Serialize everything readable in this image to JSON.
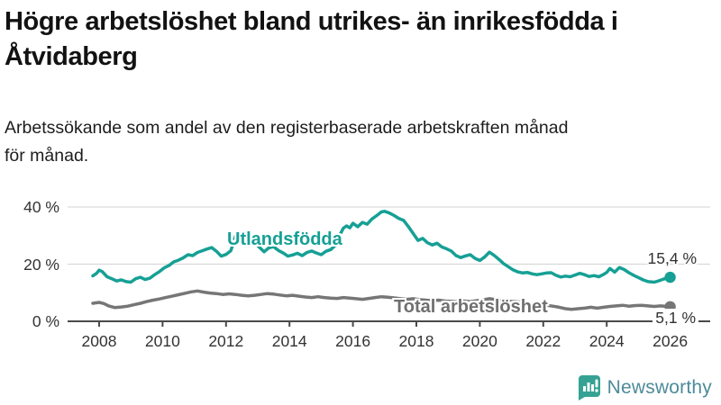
{
  "header": {
    "title_lines": [
      "Högre arbetslöshet bland utrikes- än inrikesfödda i",
      "Åtvidaberg"
    ],
    "subtitle_lines": [
      "Arbetssökande som andel av den registerbaserade arbetskraften månad",
      "för månad."
    ]
  },
  "chart_data": {
    "type": "line",
    "title": "Högre arbetslöshet bland utrikes- än inrikesfödda i Åtvidaberg",
    "subtitle": "Arbetssökande som andel av den registerbaserade arbetskraften månad för månad.",
    "x_range": [
      2008,
      2026
    ],
    "y_range": [
      0,
      40
    ],
    "grid": "horizontal-only",
    "legend_position": "inline-labels",
    "x_ticks": [
      {
        "label": "2008",
        "year": 2008
      },
      {
        "label": "2010",
        "year": 2010
      },
      {
        "label": "2012",
        "year": 2012
      },
      {
        "label": "2014",
        "year": 2014
      },
      {
        "label": "2016",
        "year": 2016
      },
      {
        "label": "2018",
        "year": 2018
      },
      {
        "label": "2020",
        "year": 2020
      },
      {
        "label": "2022",
        "year": 2022
      },
      {
        "label": "2024",
        "year": 2024
      },
      {
        "label": "2026",
        "year": 2026
      }
    ],
    "y_ticks": [
      {
        "label": "0 %",
        "value": 0
      },
      {
        "label": "20 %",
        "value": 20
      },
      {
        "label": "40 %",
        "value": 40
      }
    ],
    "colors": {
      "foreign_born": "#16a095",
      "total": "#767676",
      "axis": "#4a4a4a",
      "gridline": "#d9d9d9",
      "text": "#333333"
    },
    "series": [
      {
        "name": "Utlandsfödda",
        "color": "#16a095",
        "end_label": "15,4 %",
        "end_value": 15.4,
        "points": [
          [
            2007.8,
            15.9
          ],
          [
            2007.92,
            16.8
          ],
          [
            2008.0,
            17.9
          ],
          [
            2008.1,
            17.4
          ],
          [
            2008.25,
            15.6
          ],
          [
            2008.4,
            14.9
          ],
          [
            2008.55,
            14.1
          ],
          [
            2008.7,
            14.5
          ],
          [
            2008.85,
            13.9
          ],
          [
            2009.0,
            13.7
          ],
          [
            2009.15,
            14.9
          ],
          [
            2009.3,
            15.4
          ],
          [
            2009.45,
            14.6
          ],
          [
            2009.6,
            15.1
          ],
          [
            2009.75,
            16.3
          ],
          [
            2009.9,
            17.4
          ],
          [
            2010.05,
            18.7
          ],
          [
            2010.2,
            19.5
          ],
          [
            2010.35,
            20.8
          ],
          [
            2010.5,
            21.4
          ],
          [
            2010.65,
            22.2
          ],
          [
            2010.8,
            23.3
          ],
          [
            2010.95,
            23.0
          ],
          [
            2011.1,
            24.1
          ],
          [
            2011.25,
            24.7
          ],
          [
            2011.4,
            25.3
          ],
          [
            2011.55,
            25.8
          ],
          [
            2011.7,
            24.5
          ],
          [
            2011.85,
            22.8
          ],
          [
            2012.0,
            23.4
          ],
          [
            2012.15,
            24.7
          ],
          [
            2012.3,
            29.9
          ],
          [
            2012.4,
            31.2
          ],
          [
            2012.5,
            29.7
          ],
          [
            2012.6,
            30.8
          ],
          [
            2012.75,
            29.2
          ],
          [
            2012.9,
            27.8
          ],
          [
            2013.05,
            25.9
          ],
          [
            2013.2,
            24.3
          ],
          [
            2013.35,
            25.7
          ],
          [
            2013.5,
            26.1
          ],
          [
            2013.65,
            24.8
          ],
          [
            2013.8,
            23.9
          ],
          [
            2013.95,
            22.8
          ],
          [
            2014.1,
            23.2
          ],
          [
            2014.25,
            23.8
          ],
          [
            2014.4,
            23.0
          ],
          [
            2014.55,
            24.1
          ],
          [
            2014.7,
            24.6
          ],
          [
            2014.85,
            23.9
          ],
          [
            2015.0,
            23.3
          ],
          [
            2015.15,
            24.5
          ],
          [
            2015.3,
            25.1
          ],
          [
            2015.45,
            26.6
          ],
          [
            2015.6,
            30.5
          ],
          [
            2015.7,
            32.6
          ],
          [
            2015.8,
            33.4
          ],
          [
            2015.9,
            32.7
          ],
          [
            2016.0,
            34.3
          ],
          [
            2016.15,
            33.1
          ],
          [
            2016.3,
            34.6
          ],
          [
            2016.45,
            34.0
          ],
          [
            2016.6,
            35.8
          ],
          [
            2016.75,
            37.0
          ],
          [
            2016.9,
            38.3
          ],
          [
            2017.0,
            38.5
          ],
          [
            2017.15,
            37.9
          ],
          [
            2017.3,
            37.0
          ],
          [
            2017.45,
            36.0
          ],
          [
            2017.6,
            35.3
          ],
          [
            2017.75,
            33.1
          ],
          [
            2017.9,
            30.7
          ],
          [
            2018.05,
            28.3
          ],
          [
            2018.2,
            29.0
          ],
          [
            2018.35,
            27.5
          ],
          [
            2018.5,
            26.7
          ],
          [
            2018.65,
            27.3
          ],
          [
            2018.8,
            26.0
          ],
          [
            2018.95,
            25.4
          ],
          [
            2019.1,
            24.6
          ],
          [
            2019.25,
            23.0
          ],
          [
            2019.4,
            22.3
          ],
          [
            2019.55,
            22.9
          ],
          [
            2019.7,
            23.3
          ],
          [
            2019.85,
            22.0
          ],
          [
            2020.0,
            21.3
          ],
          [
            2020.15,
            22.5
          ],
          [
            2020.3,
            24.2
          ],
          [
            2020.45,
            23.1
          ],
          [
            2020.6,
            21.7
          ],
          [
            2020.75,
            20.2
          ],
          [
            2020.9,
            19.1
          ],
          [
            2021.05,
            18.0
          ],
          [
            2021.2,
            17.3
          ],
          [
            2021.35,
            16.9
          ],
          [
            2021.5,
            17.1
          ],
          [
            2021.65,
            16.6
          ],
          [
            2021.8,
            16.3
          ],
          [
            2021.95,
            16.6
          ],
          [
            2022.1,
            16.9
          ],
          [
            2022.25,
            17.0
          ],
          [
            2022.4,
            16.1
          ],
          [
            2022.55,
            15.5
          ],
          [
            2022.7,
            15.8
          ],
          [
            2022.85,
            15.6
          ],
          [
            2023.0,
            16.2
          ],
          [
            2023.15,
            16.8
          ],
          [
            2023.3,
            16.3
          ],
          [
            2023.45,
            15.7
          ],
          [
            2023.6,
            16.0
          ],
          [
            2023.75,
            15.6
          ],
          [
            2023.9,
            16.4
          ],
          [
            2024.0,
            17.1
          ],
          [
            2024.1,
            18.5
          ],
          [
            2024.25,
            17.2
          ],
          [
            2024.4,
            18.8
          ],
          [
            2024.55,
            18.1
          ],
          [
            2024.7,
            17.0
          ],
          [
            2024.85,
            16.1
          ],
          [
            2025.0,
            15.3
          ],
          [
            2025.15,
            14.5
          ],
          [
            2025.3,
            13.9
          ],
          [
            2025.5,
            13.7
          ],
          [
            2025.65,
            14.2
          ],
          [
            2025.8,
            14.8
          ],
          [
            2026.0,
            15.4
          ]
        ]
      },
      {
        "name": "Total arbetslöshet",
        "color": "#767676",
        "end_label": "5,1 %",
        "end_value": 5.1,
        "points": [
          [
            2007.8,
            6.3
          ],
          [
            2008.0,
            6.6
          ],
          [
            2008.15,
            6.2
          ],
          [
            2008.3,
            5.4
          ],
          [
            2008.5,
            4.8
          ],
          [
            2008.7,
            5.0
          ],
          [
            2008.9,
            5.3
          ],
          [
            2009.1,
            5.8
          ],
          [
            2009.3,
            6.3
          ],
          [
            2009.5,
            6.9
          ],
          [
            2009.7,
            7.4
          ],
          [
            2009.9,
            7.8
          ],
          [
            2010.1,
            8.3
          ],
          [
            2010.3,
            8.8
          ],
          [
            2010.5,
            9.3
          ],
          [
            2010.7,
            9.8
          ],
          [
            2010.9,
            10.3
          ],
          [
            2011.1,
            10.6
          ],
          [
            2011.3,
            10.2
          ],
          [
            2011.5,
            9.9
          ],
          [
            2011.7,
            9.7
          ],
          [
            2011.9,
            9.4
          ],
          [
            2012.1,
            9.6
          ],
          [
            2012.3,
            9.4
          ],
          [
            2012.5,
            9.1
          ],
          [
            2012.7,
            8.9
          ],
          [
            2012.9,
            9.1
          ],
          [
            2013.1,
            9.4
          ],
          [
            2013.3,
            9.7
          ],
          [
            2013.5,
            9.5
          ],
          [
            2013.7,
            9.2
          ],
          [
            2013.9,
            8.9
          ],
          [
            2014.1,
            9.1
          ],
          [
            2014.3,
            8.8
          ],
          [
            2014.5,
            8.5
          ],
          [
            2014.7,
            8.3
          ],
          [
            2014.9,
            8.6
          ],
          [
            2015.1,
            8.3
          ],
          [
            2015.3,
            8.1
          ],
          [
            2015.5,
            8.0
          ],
          [
            2015.7,
            8.3
          ],
          [
            2015.9,
            8.1
          ],
          [
            2016.1,
            7.9
          ],
          [
            2016.3,
            7.7
          ],
          [
            2016.5,
            8.0
          ],
          [
            2016.7,
            8.3
          ],
          [
            2016.9,
            8.6
          ],
          [
            2017.1,
            8.4
          ],
          [
            2017.3,
            8.2
          ],
          [
            2017.5,
            7.9
          ],
          [
            2017.7,
            7.7
          ],
          [
            2017.9,
            7.9
          ],
          [
            2018.1,
            7.6
          ],
          [
            2018.3,
            7.4
          ],
          [
            2018.5,
            7.2
          ],
          [
            2018.7,
            7.4
          ],
          [
            2018.9,
            7.1
          ],
          [
            2019.1,
            7.0
          ],
          [
            2019.3,
            6.8
          ],
          [
            2019.5,
            7.1
          ],
          [
            2019.7,
            6.9
          ],
          [
            2019.9,
            7.2
          ],
          [
            2020.1,
            7.5
          ],
          [
            2020.3,
            7.9
          ],
          [
            2020.5,
            7.6
          ],
          [
            2020.7,
            7.3
          ],
          [
            2020.9,
            7.0
          ],
          [
            2021.1,
            6.9
          ],
          [
            2021.3,
            6.7
          ],
          [
            2021.5,
            6.4
          ],
          [
            2021.7,
            6.1
          ],
          [
            2021.9,
            5.8
          ],
          [
            2022.1,
            5.6
          ],
          [
            2022.3,
            5.3
          ],
          [
            2022.5,
            4.9
          ],
          [
            2022.7,
            4.4
          ],
          [
            2022.9,
            4.2
          ],
          [
            2023.1,
            4.4
          ],
          [
            2023.3,
            4.6
          ],
          [
            2023.5,
            4.9
          ],
          [
            2023.7,
            4.6
          ],
          [
            2023.9,
            4.9
          ],
          [
            2024.1,
            5.2
          ],
          [
            2024.3,
            5.4
          ],
          [
            2024.5,
            5.6
          ],
          [
            2024.7,
            5.3
          ],
          [
            2024.9,
            5.5
          ],
          [
            2025.1,
            5.6
          ],
          [
            2025.3,
            5.4
          ],
          [
            2025.5,
            5.2
          ],
          [
            2025.7,
            5.4
          ],
          [
            2025.9,
            5.2
          ],
          [
            2026.0,
            5.1
          ]
        ]
      }
    ]
  },
  "footer": {
    "brand": "Newsworthy",
    "brand_colors": {
      "bubble": "#35a294",
      "text": "#4d8b99"
    }
  }
}
